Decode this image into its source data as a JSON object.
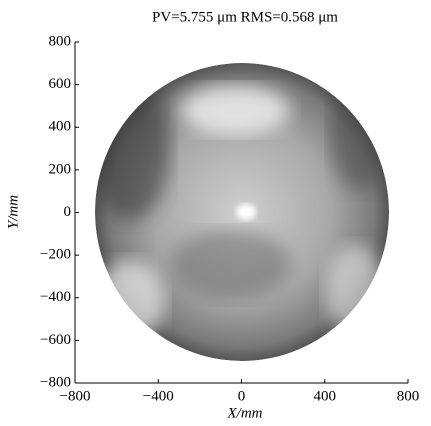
{
  "chart_data": {
    "type": "image",
    "title": "PV=5.755 μm RMS=0.568 μm",
    "xlabel": "X/mm",
    "ylabel": "Y/mm",
    "xlim": [
      -800,
      800
    ],
    "ylim": [
      -800,
      800
    ],
    "xticks": [
      {
        "value": -800,
        "label": "−800"
      },
      {
        "value": -400,
        "label": "−400"
      },
      0,
      400,
      800
    ],
    "yticks": [
      {
        "value": -800,
        "label": "−800"
      },
      {
        "value": -600,
        "label": "−600"
      },
      {
        "value": -400,
        "label": "−400"
      },
      {
        "value": -200,
        "label": "−200"
      },
      0,
      200,
      400,
      600,
      800
    ]
  }
}
